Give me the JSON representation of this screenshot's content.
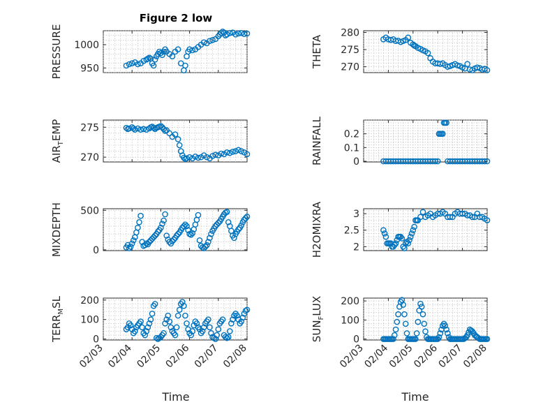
{
  "figure": {
    "title": "Figure 2 low",
    "xlabel": "Time"
  },
  "chart_data": [
    {
      "id": "pressure",
      "type": "scatter",
      "title": "Figure 2 low",
      "ylabel": "PRESSURE",
      "xlabel": "",
      "ylim": [
        940,
        1030
      ],
      "yticks": [
        950,
        1000
      ],
      "xlim": [
        0,
        5
      ],
      "grid": true,
      "x": [
        0.8,
        0.9,
        1.0,
        1.1,
        1.2,
        1.3,
        1.4,
        1.5,
        1.55,
        1.6,
        1.65,
        1.7,
        1.75,
        1.8,
        1.85,
        1.9,
        1.95,
        2.0,
        2.05,
        2.1,
        2.15,
        2.2,
        2.3,
        2.4,
        2.5,
        2.6,
        2.7,
        2.8,
        2.85,
        2.9,
        2.95,
        3.0,
        3.1,
        3.2,
        3.3,
        3.4,
        3.5,
        3.6,
        3.7,
        3.8,
        3.9,
        4.0,
        4.05,
        4.1,
        4.15,
        4.2,
        4.25,
        4.3,
        4.4,
        4.5,
        4.6,
        4.7,
        4.8,
        4.9,
        5.0
      ],
      "y": [
        955,
        958,
        960,
        962,
        958,
        960,
        965,
        968,
        970,
        972,
        970,
        960,
        955,
        968,
        975,
        980,
        985,
        982,
        978,
        985,
        990,
        985,
        980,
        975,
        985,
        990,
        960,
        945,
        955,
        975,
        985,
        990,
        988,
        990,
        995,
        1000,
        1005,
        1003,
        1008,
        1010,
        1012,
        1018,
        1022,
        1025,
        1028,
        1026,
        1020,
        1022,
        1025,
        1026,
        1022,
        1024,
        1025,
        1023,
        1024
      ]
    },
    {
      "id": "theta",
      "type": "scatter",
      "ylabel": "THETA",
      "xlabel": "",
      "ylim": [
        268.3,
        280.5
      ],
      "yticks": [
        270,
        275,
        280
      ],
      "xlim": [
        0,
        5
      ],
      "grid": true,
      "x": [
        0.8,
        0.9,
        1.0,
        1.1,
        1.2,
        1.3,
        1.4,
        1.5,
        1.6,
        1.7,
        1.8,
        1.9,
        2.0,
        2.05,
        2.1,
        2.2,
        2.3,
        2.4,
        2.5,
        2.6,
        2.7,
        2.8,
        2.9,
        3.0,
        3.1,
        3.2,
        3.3,
        3.4,
        3.5,
        3.6,
        3.7,
        3.8,
        3.9,
        4.0,
        4.1,
        4.2,
        4.3,
        4.4,
        4.5,
        4.6,
        4.7,
        4.8,
        4.9,
        5.0
      ],
      "y": [
        278.0,
        278.5,
        278.0,
        277.8,
        278.0,
        277.5,
        277.6,
        277.2,
        277.5,
        277.8,
        278.5,
        277.0,
        276.5,
        276.2,
        276.0,
        275.5,
        275.2,
        274.8,
        274.5,
        274.0,
        272.5,
        271.5,
        271.0,
        271.0,
        270.8,
        271.0,
        270.5,
        270.0,
        270.2,
        270.5,
        270.8,
        270.4,
        270.2,
        269.8,
        269.5,
        270.8,
        269.2,
        269.0,
        269.5,
        269.8,
        269.6,
        269.2,
        269.4,
        269.0
      ]
    },
    {
      "id": "airtemp",
      "type": "scatter",
      "ylabel": "AIR",
      "ylabel_sub": "T",
      "ylabel_rest": "EMP",
      "xlabel": "",
      "ylim": [
        269.2,
        276.2
      ],
      "yticks": [
        270,
        275
      ],
      "xlim": [
        0,
        5
      ],
      "grid": true,
      "x": [
        0.8,
        0.85,
        0.9,
        1.0,
        1.05,
        1.1,
        1.2,
        1.3,
        1.4,
        1.5,
        1.6,
        1.65,
        1.7,
        1.75,
        1.8,
        1.85,
        1.9,
        1.95,
        2.0,
        2.05,
        2.1,
        2.15,
        2.2,
        2.3,
        2.4,
        2.5,
        2.6,
        2.65,
        2.7,
        2.75,
        2.8,
        2.85,
        2.9,
        3.0,
        3.1,
        3.2,
        3.3,
        3.4,
        3.5,
        3.6,
        3.7,
        3.8,
        3.9,
        4.0,
        4.1,
        4.2,
        4.3,
        4.4,
        4.5,
        4.6,
        4.7,
        4.8,
        4.9,
        5.0
      ],
      "y": [
        274.9,
        274.7,
        274.8,
        275.0,
        274.8,
        274.6,
        274.8,
        274.6,
        274.7,
        274.6,
        274.8,
        275.0,
        275.1,
        274.9,
        274.7,
        274.9,
        275.0,
        275.1,
        275.2,
        275.0,
        274.7,
        274.4,
        274.5,
        274.0,
        273.4,
        273.8,
        273.0,
        272.0,
        271.0,
        270.3,
        269.9,
        269.7,
        269.8,
        270.0,
        269.8,
        270.1,
        269.9,
        270.0,
        270.3,
        270.0,
        269.8,
        270.2,
        270.4,
        270.3,
        270.6,
        270.5,
        270.8,
        270.7,
        270.9,
        271.0,
        271.2,
        271.0,
        270.8,
        270.5
      ]
    },
    {
      "id": "rainfall",
      "type": "scatter",
      "ylabel": "RAINFALL",
      "xlabel": "",
      "ylim": [
        -0.005,
        0.3
      ],
      "yticks": [
        0,
        0.1,
        0.2
      ],
      "xlim": [
        0,
        5
      ],
      "grid": true,
      "x": [
        0.8,
        0.9,
        1.0,
        1.1,
        1.2,
        1.3,
        1.4,
        1.5,
        1.6,
        1.7,
        1.8,
        1.9,
        2.0,
        2.1,
        2.2,
        2.3,
        2.4,
        2.5,
        2.6,
        2.7,
        2.8,
        2.9,
        3.0,
        3.05,
        3.1,
        3.15,
        3.2,
        3.25,
        3.3,
        3.35,
        3.4,
        3.5,
        3.6,
        3.7,
        3.8,
        3.9,
        4.0,
        4.1,
        4.2,
        4.3,
        4.4,
        4.5,
        4.6,
        4.7,
        4.8,
        4.9,
        5.0
      ],
      "y": [
        0,
        0,
        0,
        0,
        0,
        0,
        0,
        0,
        0,
        0,
        0,
        0,
        0,
        0,
        0,
        0,
        0,
        0,
        0,
        0,
        0,
        0,
        0,
        0.2,
        0.2,
        0.2,
        0.2,
        0.28,
        0.28,
        0.28,
        0,
        0,
        0,
        0,
        0,
        0,
        0,
        0,
        0,
        0,
        0,
        0,
        0,
        0,
        0,
        0,
        0
      ]
    },
    {
      "id": "mixdepth",
      "type": "scatter",
      "ylabel": "MIXDEPTH",
      "xlabel": "",
      "ylim": [
        -10,
        520
      ],
      "yticks": [
        0,
        500
      ],
      "xlim": [
        0,
        5
      ],
      "grid": true,
      "x": [
        0.8,
        0.85,
        0.9,
        0.95,
        1.0,
        1.05,
        1.1,
        1.15,
        1.2,
        1.25,
        1.3,
        1.35,
        1.4,
        1.45,
        1.5,
        1.55,
        1.6,
        1.65,
        1.7,
        1.75,
        1.8,
        1.85,
        1.9,
        1.95,
        2.0,
        2.05,
        2.1,
        2.15,
        2.2,
        2.25,
        2.3,
        2.35,
        2.4,
        2.45,
        2.5,
        2.55,
        2.6,
        2.65,
        2.7,
        2.75,
        2.8,
        2.85,
        2.9,
        2.95,
        3.0,
        3.05,
        3.1,
        3.15,
        3.2,
        3.25,
        3.3,
        3.35,
        3.4,
        3.45,
        3.5,
        3.55,
        3.6,
        3.65,
        3.7,
        3.75,
        3.8,
        3.85,
        3.9,
        3.95,
        4.0,
        4.05,
        4.1,
        4.15,
        4.2,
        4.25,
        4.3,
        4.35,
        4.4,
        4.45,
        4.5,
        4.55,
        4.6,
        4.65,
        4.7,
        4.75,
        4.8,
        4.85,
        4.9,
        4.95,
        5.0
      ],
      "y": [
        30,
        60,
        20,
        40,
        80,
        120,
        160,
        220,
        280,
        350,
        430,
        100,
        50,
        60,
        80,
        70,
        100,
        120,
        140,
        160,
        180,
        200,
        230,
        250,
        280,
        330,
        370,
        450,
        180,
        130,
        100,
        80,
        110,
        130,
        150,
        180,
        200,
        220,
        250,
        280,
        300,
        320,
        300,
        250,
        200,
        190,
        210,
        260,
        320,
        380,
        440,
        120,
        50,
        30,
        20,
        40,
        60,
        100,
        150,
        200,
        240,
        270,
        300,
        320,
        340,
        360,
        390,
        420,
        450,
        470,
        480,
        350,
        300,
        240,
        180,
        150,
        200,
        230,
        260,
        280,
        310,
        350,
        380,
        400,
        420
      ]
    },
    {
      "id": "h2omixra",
      "type": "scatter",
      "ylabel": "H2OMIXRA",
      "xlabel": "",
      "ylim": [
        1.88,
        3.15
      ],
      "yticks": [
        2,
        2.5,
        3
      ],
      "xlim": [
        0,
        5
      ],
      "grid": true,
      "x": [
        0.8,
        0.85,
        0.9,
        0.95,
        1.0,
        1.05,
        1.1,
        1.15,
        1.2,
        1.25,
        1.3,
        1.35,
        1.4,
        1.45,
        1.5,
        1.55,
        1.6,
        1.65,
        1.7,
        1.75,
        1.8,
        1.85,
        1.9,
        1.95,
        2.0,
        2.05,
        2.1,
        2.15,
        2.2,
        2.3,
        2.4,
        2.5,
        2.6,
        2.7,
        2.8,
        2.9,
        3.0,
        3.1,
        3.2,
        3.3,
        3.4,
        3.5,
        3.6,
        3.7,
        3.8,
        3.9,
        4.0,
        4.1,
        4.2,
        4.3,
        4.4,
        4.5,
        4.6,
        4.7,
        4.8,
        4.9,
        5.0
      ],
      "y": [
        2.5,
        2.4,
        2.3,
        2.1,
        2.1,
        2.1,
        2.1,
        2.0,
        2.0,
        2.05,
        2.1,
        2.2,
        2.3,
        2.3,
        2.3,
        2.25,
        2.0,
        1.95,
        2.1,
        2.15,
        2.1,
        2.2,
        2.3,
        2.4,
        2.5,
        2.6,
        2.8,
        2.8,
        2.8,
        2.9,
        3.05,
        2.9,
        2.95,
        3.0,
        2.9,
        2.95,
        3.0,
        3.0,
        3.05,
        3.0,
        2.9,
        2.9,
        2.9,
        3.0,
        3.05,
        3.0,
        3.0,
        3.0,
        2.95,
        2.95,
        2.9,
        2.9,
        3.0,
        2.9,
        2.9,
        2.85,
        2.8
      ]
    },
    {
      "id": "terrmsl",
      "type": "scatter",
      "ylabel": "TERR",
      "ylabel_sub": "M",
      "ylabel_rest": "SL",
      "xlabel": "",
      "ylim": [
        -5,
        210
      ],
      "yticks": [
        0,
        100,
        200
      ],
      "xlim": [
        0,
        5
      ],
      "grid": true,
      "x": [
        0.8,
        0.85,
        0.9,
        0.95,
        1.0,
        1.05,
        1.1,
        1.15,
        1.2,
        1.25,
        1.3,
        1.35,
        1.4,
        1.45,
        1.5,
        1.55,
        1.6,
        1.65,
        1.7,
        1.75,
        1.8,
        1.85,
        1.9,
        1.95,
        2.0,
        2.05,
        2.1,
        2.15,
        2.2,
        2.25,
        2.3,
        2.35,
        2.4,
        2.45,
        2.5,
        2.55,
        2.6,
        2.65,
        2.7,
        2.75,
        2.8,
        2.85,
        2.9,
        2.95,
        3.0,
        3.05,
        3.1,
        3.15,
        3.2,
        3.25,
        3.3,
        3.35,
        3.4,
        3.45,
        3.5,
        3.55,
        3.6,
        3.65,
        3.7,
        3.75,
        3.8,
        3.85,
        3.9,
        3.95,
        4.0,
        4.05,
        4.1,
        4.15,
        4.2,
        4.25,
        4.3,
        4.35,
        4.4,
        4.45,
        4.5,
        4.55,
        4.6,
        4.65,
        4.7,
        4.75,
        4.8,
        4.85,
        4.9,
        4.95,
        5.0
      ],
      "y": [
        50,
        60,
        80,
        70,
        50,
        30,
        40,
        60,
        70,
        80,
        90,
        60,
        30,
        20,
        40,
        60,
        80,
        100,
        130,
        170,
        180,
        5,
        0,
        5,
        10,
        20,
        30,
        80,
        100,
        120,
        90,
        60,
        40,
        30,
        20,
        60,
        120,
        150,
        180,
        190,
        170,
        120,
        80,
        50,
        30,
        20,
        40,
        70,
        90,
        80,
        60,
        50,
        30,
        40,
        60,
        80,
        90,
        100,
        60,
        30,
        10,
        5,
        0,
        20,
        50,
        80,
        90,
        100,
        20,
        10,
        5,
        10,
        40,
        80,
        100,
        120,
        130,
        120,
        100,
        80,
        90,
        110,
        130,
        145,
        150
      ]
    },
    {
      "id": "sunflux",
      "type": "scatter",
      "ylabel": "SUN",
      "ylabel_sub": "F",
      "ylabel_rest": "LUX",
      "xlabel": "",
      "ylim": [
        -5,
        215
      ],
      "yticks": [
        0,
        100,
        200
      ],
      "xlim": [
        0,
        5
      ],
      "grid": true,
      "x": [
        0.8,
        0.85,
        0.9,
        0.95,
        1.0,
        1.05,
        1.1,
        1.15,
        1.2,
        1.25,
        1.3,
        1.35,
        1.4,
        1.45,
        1.5,
        1.55,
        1.6,
        1.65,
        1.7,
        1.75,
        1.8,
        1.85,
        1.9,
        1.95,
        2.0,
        2.05,
        2.1,
        2.15,
        2.2,
        2.25,
        2.3,
        2.35,
        2.4,
        2.45,
        2.5,
        2.55,
        2.6,
        2.65,
        2.7,
        2.75,
        2.8,
        2.85,
        2.9,
        2.95,
        3.0,
        3.05,
        3.1,
        3.15,
        3.2,
        3.25,
        3.3,
        3.35,
        3.4,
        3.45,
        3.5,
        3.55,
        3.6,
        3.65,
        3.7,
        3.75,
        3.8,
        3.85,
        3.9,
        3.95,
        4.0,
        4.05,
        4.1,
        4.15,
        4.2,
        4.25,
        4.3,
        4.35,
        4.4,
        4.45,
        4.5,
        4.55,
        4.6,
        4.65,
        4.7,
        4.75,
        4.8,
        4.85,
        4.9,
        4.95,
        5.0
      ],
      "y": [
        0,
        0,
        0,
        0,
        0,
        0,
        0,
        0,
        0,
        20,
        50,
        90,
        130,
        170,
        195,
        205,
        180,
        130,
        80,
        30,
        0,
        0,
        0,
        0,
        0,
        0,
        0,
        30,
        90,
        150,
        185,
        170,
        130,
        80,
        40,
        10,
        0,
        0,
        0,
        0,
        0,
        0,
        0,
        0,
        0,
        10,
        30,
        50,
        70,
        80,
        70,
        50,
        30,
        10,
        0,
        0,
        0,
        0,
        0,
        0,
        0,
        0,
        0,
        0,
        0,
        0,
        5,
        10,
        20,
        35,
        50,
        45,
        40,
        30,
        20,
        15,
        10,
        5,
        0,
        0,
        0,
        0,
        0,
        0,
        0
      ]
    }
  ],
  "x_ticks": [
    "02/03",
    "02/04",
    "02/05",
    "02/06",
    "02/07",
    "02/08"
  ]
}
